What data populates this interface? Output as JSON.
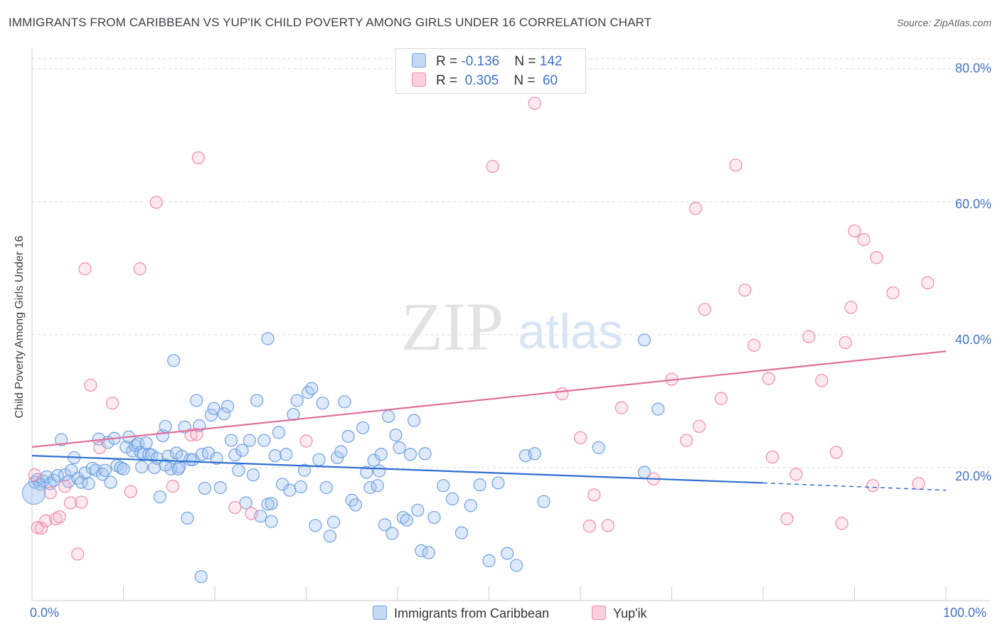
{
  "title": "IMMIGRANTS FROM CARIBBEAN VS YUP'IK CHILD POVERTY AMONG GIRLS UNDER 16 CORRELATION CHART",
  "source": "Source: ZipAtlas.com",
  "watermark": {
    "zip": "ZIP",
    "atlas": "atlas"
  },
  "legend": {
    "rows": [
      {
        "r_label": "R = ",
        "r_value": "-0.136",
        "n_label": "N = ",
        "n_value": "142",
        "color": "#6fa0e0"
      },
      {
        "r_label": "R = ",
        "r_value": " 0.305",
        "n_label": "N = ",
        "n_value": " 60",
        "color": "#f08aaa"
      }
    ]
  },
  "bottom_legend": [
    {
      "label": "Immigrants from Caribbean",
      "color": "#6fa0e0"
    },
    {
      "label": "Yup'ik",
      "color": "#f08aaa"
    }
  ],
  "chart_data": {
    "type": "scatter",
    "title": "IMMIGRANTS FROM CARIBBEAN VS YUP'IK CHILD POVERTY AMONG GIRLS UNDER 16 CORRELATION CHART",
    "xlabel": "",
    "ylabel": "Child Poverty Among Girls Under 16",
    "xlim": [
      0,
      100
    ],
    "ylim": [
      0,
      82
    ],
    "x_tick_labels": [
      "0.0%",
      "100.0%"
    ],
    "y_ticks": [
      20,
      40,
      60,
      80
    ],
    "y_tick_labels": [
      "20.0%",
      "40.0%",
      "60.0%",
      "80.0%"
    ],
    "grid": "horizontal dashed",
    "legend_position": "top-center",
    "series": [
      {
        "name": "Immigrants from Caribbean",
        "color": "#6fa0e0",
        "trend": {
          "x0": 0,
          "y0": 21.8,
          "x1": 80,
          "y1": 17.7,
          "dash_to": 100,
          "dash_y": 16.6
        },
        "points": [
          [
            0.3,
            17.8
          ],
          [
            0.6,
            18.2
          ],
          [
            0.9,
            17.5
          ],
          [
            1.2,
            18.0
          ],
          [
            1.6,
            18.6
          ],
          [
            2.0,
            17.6
          ],
          [
            2.4,
            18.1
          ],
          [
            2.8,
            18.8
          ],
          [
            3.2,
            24.2
          ],
          [
            3.6,
            18.9
          ],
          [
            4.0,
            17.9
          ],
          [
            4.3,
            19.6
          ],
          [
            4.6,
            21.5
          ],
          [
            5.0,
            18.4
          ],
          [
            5.4,
            17.8
          ],
          [
            5.8,
            19.2
          ],
          [
            6.2,
            17.6
          ],
          [
            6.6,
            19.9
          ],
          [
            7.0,
            19.6
          ],
          [
            7.3,
            24.3
          ],
          [
            7.7,
            19.0
          ],
          [
            8.0,
            19.6
          ],
          [
            8.3,
            23.8
          ],
          [
            8.6,
            17.8
          ],
          [
            9.0,
            24.4
          ],
          [
            9.3,
            20.3
          ],
          [
            9.7,
            20.0
          ],
          [
            10.0,
            19.8
          ],
          [
            10.3,
            23.1
          ],
          [
            10.6,
            24.6
          ],
          [
            11.0,
            22.5
          ],
          [
            11.3,
            23.3
          ],
          [
            11.6,
            23.6
          ],
          [
            11.9,
            22.3
          ],
          [
            12.2,
            22.0
          ],
          [
            12.5,
            23.7
          ],
          [
            12.8,
            22.0
          ],
          [
            13.1,
            21.9
          ],
          [
            13.4,
            20.0
          ],
          [
            13.7,
            21.4
          ],
          [
            14.0,
            15.6
          ],
          [
            14.3,
            24.8
          ],
          [
            14.6,
            26.2
          ],
          [
            14.9,
            21.7
          ],
          [
            15.2,
            19.8
          ],
          [
            15.5,
            36.1
          ],
          [
            15.8,
            22.2
          ],
          [
            16.1,
            20.1
          ],
          [
            16.4,
            21.7
          ],
          [
            16.7,
            26.1
          ],
          [
            17.0,
            12.4
          ],
          [
            17.3,
            21.2
          ],
          [
            17.6,
            21.2
          ],
          [
            18.0,
            30.1
          ],
          [
            18.3,
            26.3
          ],
          [
            18.6,
            22.0
          ],
          [
            18.9,
            16.9
          ],
          [
            19.3,
            22.2
          ],
          [
            19.6,
            27.9
          ],
          [
            19.9,
            28.9
          ],
          [
            18.5,
            3.6
          ],
          [
            20.2,
            21.4
          ],
          [
            20.6,
            17.0
          ],
          [
            21.0,
            28.1
          ],
          [
            21.4,
            29.2
          ],
          [
            21.8,
            24.1
          ],
          [
            22.2,
            21.9
          ],
          [
            22.6,
            19.6
          ],
          [
            23.0,
            22.6
          ],
          [
            23.4,
            14.7
          ],
          [
            23.8,
            24.1
          ],
          [
            24.2,
            18.9
          ],
          [
            24.6,
            30.1
          ],
          [
            25.0,
            12.7
          ],
          [
            25.4,
            24.1
          ],
          [
            25.8,
            14.5
          ],
          [
            26.2,
            11.9
          ],
          [
            26.6,
            21.8
          ],
          [
            27.0,
            25.3
          ],
          [
            27.4,
            17.5
          ],
          [
            27.8,
            22.0
          ],
          [
            28.2,
            16.6
          ],
          [
            28.6,
            28.0
          ],
          [
            29.0,
            30.1
          ],
          [
            29.4,
            17.1
          ],
          [
            29.8,
            19.6
          ],
          [
            30.2,
            31.3
          ],
          [
            30.6,
            31.9
          ],
          [
            31.0,
            11.3
          ],
          [
            31.4,
            21.2
          ],
          [
            31.8,
            29.7
          ],
          [
            32.2,
            17.0
          ],
          [
            32.6,
            9.7
          ],
          [
            33.0,
            11.8
          ],
          [
            33.4,
            21.5
          ],
          [
            33.8,
            22.4
          ],
          [
            34.2,
            29.9
          ],
          [
            34.6,
            24.7
          ],
          [
            35.0,
            15.1
          ],
          [
            35.4,
            14.4
          ],
          [
            25.8,
            39.4
          ],
          [
            36.2,
            26.0
          ],
          [
            36.6,
            19.3
          ],
          [
            37.0,
            17.0
          ],
          [
            37.4,
            21.1
          ],
          [
            37.8,
            17.3
          ],
          [
            38.2,
            22.0
          ],
          [
            38.6,
            11.4
          ],
          [
            39.0,
            27.7
          ],
          [
            39.4,
            10.1
          ],
          [
            39.8,
            24.9
          ],
          [
            40.2,
            23.0
          ],
          [
            40.6,
            12.5
          ],
          [
            41.0,
            12.1
          ],
          [
            41.4,
            22.0
          ],
          [
            41.8,
            27.1
          ],
          [
            42.2,
            13.6
          ],
          [
            42.6,
            7.5
          ],
          [
            43.0,
            22.1
          ],
          [
            43.4,
            7.2
          ],
          [
            44.0,
            12.5
          ],
          [
            45.0,
            17.3
          ],
          [
            46.0,
            15.3
          ],
          [
            47.0,
            10.2
          ],
          [
            48.0,
            14.3
          ],
          [
            49.0,
            17.4
          ],
          [
            50.0,
            6.0
          ],
          [
            51.0,
            17.7
          ],
          [
            52.0,
            7.1
          ],
          [
            53.0,
            5.3
          ],
          [
            54.0,
            21.8
          ],
          [
            55.0,
            22.1
          ],
          [
            56.0,
            14.9
          ],
          [
            62.0,
            23.0
          ],
          [
            67.0,
            19.3
          ],
          [
            67.0,
            39.2
          ],
          [
            68.5,
            28.8
          ],
          [
            26.2,
            14.6
          ],
          [
            38.0,
            19.5
          ],
          [
            16.0,
            19.8
          ],
          [
            12.0,
            20.1
          ],
          [
            14.6,
            20.4
          ]
        ]
      },
      {
        "name": "Yup'ik",
        "color": "#f08aaa",
        "trend": {
          "x0": 0,
          "y0": 23.1,
          "x1": 100,
          "y1": 37.5
        },
        "points": [
          [
            0.3,
            18.9
          ],
          [
            0.6,
            11.0
          ],
          [
            1.0,
            10.9
          ],
          [
            1.5,
            12.0
          ],
          [
            2.0,
            16.2
          ],
          [
            2.6,
            12.3
          ],
          [
            3.0,
            12.6
          ],
          [
            3.6,
            17.2
          ],
          [
            4.2,
            14.7
          ],
          [
            5.0,
            7.0
          ],
          [
            5.4,
            14.8
          ],
          [
            5.8,
            49.9
          ],
          [
            6.4,
            32.4
          ],
          [
            7.4,
            23.0
          ],
          [
            8.8,
            29.7
          ],
          [
            10.8,
            16.4
          ],
          [
            11.8,
            49.9
          ],
          [
            13.6,
            59.9
          ],
          [
            15.4,
            17.2
          ],
          [
            17.4,
            24.9
          ],
          [
            18.2,
            66.6
          ],
          [
            18.0,
            25.0
          ],
          [
            22.2,
            14.0
          ],
          [
            24.0,
            13.1
          ],
          [
            30.0,
            24.0
          ],
          [
            50.4,
            65.3
          ],
          [
            55.0,
            74.8
          ],
          [
            58.0,
            31.1
          ],
          [
            60.0,
            24.5
          ],
          [
            61.0,
            11.2
          ],
          [
            61.5,
            15.9
          ],
          [
            63.0,
            11.3
          ],
          [
            64.5,
            29.0
          ],
          [
            68.0,
            18.3
          ],
          [
            70.0,
            33.3
          ],
          [
            71.6,
            24.1
          ],
          [
            72.6,
            59.0
          ],
          [
            73.0,
            26.2
          ],
          [
            73.6,
            43.8
          ],
          [
            75.4,
            30.4
          ],
          [
            77.0,
            65.5
          ],
          [
            78.0,
            46.7
          ],
          [
            79.0,
            38.4
          ],
          [
            80.6,
            33.4
          ],
          [
            81.0,
            21.6
          ],
          [
            82.6,
            12.3
          ],
          [
            83.6,
            19.0
          ],
          [
            85.0,
            39.7
          ],
          [
            86.4,
            33.1
          ],
          [
            88.0,
            22.3
          ],
          [
            88.6,
            11.6
          ],
          [
            89.0,
            38.8
          ],
          [
            89.6,
            44.1
          ],
          [
            90.0,
            55.6
          ],
          [
            91.0,
            54.3
          ],
          [
            92.0,
            17.3
          ],
          [
            92.4,
            51.6
          ],
          [
            94.2,
            46.3
          ],
          [
            97.0,
            17.6
          ],
          [
            98.0,
            47.8
          ]
        ]
      }
    ]
  }
}
